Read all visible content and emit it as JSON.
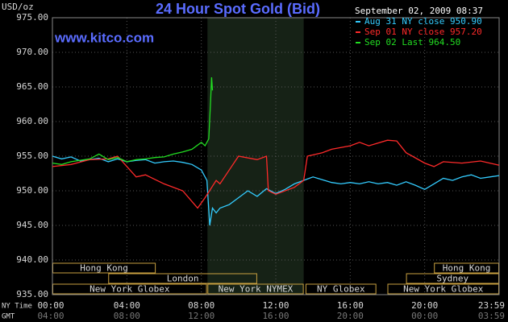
{
  "chart_data": {
    "type": "line",
    "title": "24 Hour Spot Gold (Bid)",
    "source": "www.kitco.com",
    "y_label": "USD/oz",
    "timestamp": "September 02, 2009 08:37",
    "x_row_labels": [
      "NY Time",
      "GMT"
    ],
    "xlim": [
      0,
      24
    ],
    "xticks": [
      {
        "value": 0,
        "label": "00:00"
      },
      {
        "value": 4,
        "label": "04:00"
      },
      {
        "value": 8,
        "label": "08:00"
      },
      {
        "value": 12,
        "label": "12:00"
      },
      {
        "value": 16,
        "label": "16:00"
      },
      {
        "value": 20,
        "label": "20:00"
      },
      {
        "value": 23.983,
        "label": "23:59"
      }
    ],
    "gmt_labels": [
      "04:00",
      "08:00",
      "12:00",
      "16:00",
      "20:00",
      "00:00",
      "03:59"
    ],
    "ylim": [
      935,
      975
    ],
    "yticks": [
      {
        "value": 935,
        "label": "935.00"
      },
      {
        "value": 940,
        "label": "940.00"
      },
      {
        "value": 945,
        "label": "945.00"
      },
      {
        "value": 950,
        "label": "950.00"
      },
      {
        "value": 955,
        "label": "955.00"
      },
      {
        "value": 960,
        "label": "960.00"
      },
      {
        "value": 965,
        "label": "965.00"
      },
      {
        "value": 970,
        "label": "970.00"
      },
      {
        "value": 975,
        "label": "975.00"
      }
    ],
    "grid": true,
    "highlight": {
      "start": 8.33,
      "end": 13.5,
      "color": "#162216"
    },
    "sessions": [
      {
        "label": "Hong Kong",
        "start": 0,
        "end": 5.55
      },
      {
        "label": "London",
        "start": 3,
        "end": 11
      },
      {
        "label": "New York Globex",
        "start": 0,
        "end": 8.3
      },
      {
        "label": "New York NYMEX",
        "start": 8.33,
        "end": 13.5
      },
      {
        "label": "NY Globex",
        "start": 13.6,
        "end": 17.4
      },
      {
        "label": "Hong Kong",
        "start": 20.5,
        "end": 24
      },
      {
        "label": "Sydney",
        "start": 19,
        "end": 24
      },
      {
        "label": "New York Globex",
        "start": 18,
        "end": 24
      }
    ],
    "series": [
      {
        "name": "Aug 31 NY close 950.90",
        "color": "#33ccff",
        "x": [
          0,
          0.5,
          1,
          1.5,
          2,
          2.5,
          3,
          3.5,
          4,
          4.5,
          5,
          5.5,
          6,
          6.5,
          7,
          7.5,
          8,
          8.3,
          8.45,
          8.6,
          8.8,
          9,
          9.5,
          10,
          10.5,
          11,
          11.5,
          12,
          12.5,
          13,
          13.5,
          14,
          14.5,
          15,
          15.5,
          16,
          16.5,
          17,
          17.5,
          18,
          18.5,
          19,
          19.5,
          20,
          20.5,
          21,
          21.5,
          22,
          22.5,
          23,
          23.5,
          24
        ],
        "values": [
          955,
          954.6,
          954.9,
          954.3,
          954.5,
          954.7,
          954.2,
          954.6,
          954.2,
          954.4,
          954.5,
          954,
          954.2,
          954.3,
          954.1,
          953.8,
          953,
          951.5,
          945,
          947.5,
          946.8,
          947.5,
          948,
          949,
          950,
          949.2,
          950.3,
          949.6,
          950.2,
          951,
          951.5,
          952,
          951.6,
          951.2,
          951,
          951.2,
          951,
          951.3,
          951,
          951.2,
          950.8,
          951.3,
          950.8,
          950.2,
          951,
          951.8,
          951.5,
          952,
          952.3,
          951.8,
          952,
          952.2
        ]
      },
      {
        "name": "Sep 01 NY close 957.20",
        "color": "#ff2a2a",
        "x": [
          0,
          1,
          2,
          3,
          3.5,
          4.5,
          5,
          6,
          7,
          7.8,
          8.2,
          8.8,
          9,
          9.5,
          10,
          11,
          11.5,
          11.6,
          12,
          13,
          13.5,
          13.7,
          14.5,
          15,
          16,
          16.5,
          17,
          18,
          18.5,
          19,
          20,
          20.5,
          21,
          22,
          23,
          24
        ],
        "values": [
          953.5,
          953.8,
          954.5,
          954.6,
          955,
          952,
          952.3,
          951,
          950,
          947.5,
          949,
          951.5,
          951,
          953,
          955,
          954.5,
          955,
          950,
          949.5,
          950.5,
          951.5,
          955,
          955.5,
          956,
          956.5,
          957,
          956.5,
          957.3,
          957.2,
          955.5,
          954,
          953.5,
          954.2,
          954,
          954.3,
          953.7
        ]
      },
      {
        "name": "Sep 02 Last 964.50",
        "color": "#22dd22",
        "x": [
          0,
          0.5,
          1,
          2,
          2.5,
          3,
          3.5,
          4,
          4.5,
          5,
          5.5,
          6,
          6.5,
          7,
          7.5,
          8,
          8.2,
          8.4,
          8.5,
          8.55,
          8.6
        ],
        "values": [
          954,
          953.8,
          954.2,
          954.6,
          955.3,
          954.5,
          954.8,
          954.2,
          954.5,
          954.6,
          954.8,
          954.9,
          955.3,
          955.6,
          956,
          957,
          956.5,
          957.5,
          963,
          966.4,
          964.5
        ]
      }
    ]
  }
}
